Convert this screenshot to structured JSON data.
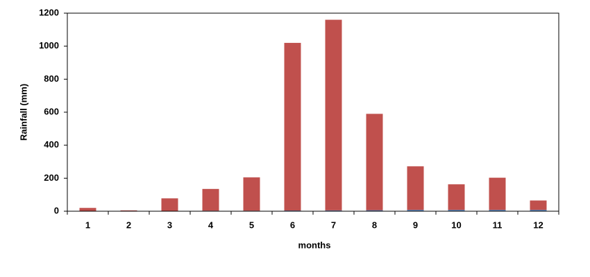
{
  "chart_data": {
    "type": "bar",
    "stacked": true,
    "x_label": "months",
    "y_label": "Rainfall (mm)",
    "categories": [
      "1",
      "2",
      "3",
      "4",
      "5",
      "6",
      "7",
      "8",
      "9",
      "10",
      "11",
      "12"
    ],
    "series": [
      {
        "color": "#4f81bd",
        "values": [
          1,
          1,
          2,
          3,
          3,
          4,
          5,
          6,
          8,
          8,
          8,
          8
        ]
      },
      {
        "color": "#c0504d",
        "values": [
          19,
          4,
          76,
          132,
          202,
          1016,
          1155,
          584,
          264,
          155,
          195,
          57
        ]
      }
    ],
    "ylim": [
      0,
      1200
    ],
    "yticks": [
      0,
      200,
      400,
      600,
      800,
      1000,
      1200
    ],
    "grid": false
  }
}
